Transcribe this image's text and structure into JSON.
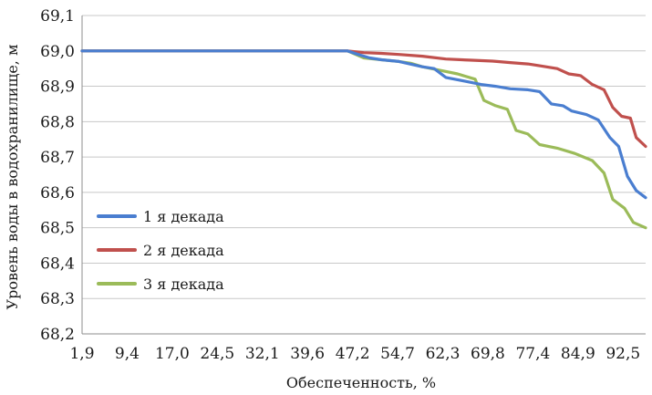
{
  "chart_data": {
    "type": "line",
    "xlabel": "Обеспеченность, %",
    "ylabel": "Уровень воды в водохранилище, м",
    "x_tick_labels": [
      "1,9",
      "9,4",
      "17,0",
      "24,5",
      "32,1",
      "39,6",
      "47,2",
      "54,7",
      "62,3",
      "69,8",
      "77,4",
      "84,9",
      "92,5"
    ],
    "y_tick_labels": [
      "68,2",
      "68,3",
      "68,4",
      "68,5",
      "68,6",
      "68,7",
      "68,8",
      "68,9",
      "69,0",
      "69,1"
    ],
    "ylim": [
      68.2,
      69.1
    ],
    "xlim": [
      1.9,
      98.1
    ],
    "grid": "horizontal",
    "legend_position": "left-center",
    "series": [
      {
        "name": "1 я декада",
        "color": "#4a7ed0",
        "points": [
          [
            1.9,
            69.0
          ],
          [
            45.0,
            69.0
          ],
          [
            47.2,
            69.0
          ],
          [
            49.0,
            68.99
          ],
          [
            51.0,
            68.98
          ],
          [
            53.0,
            68.975
          ],
          [
            56.0,
            68.97
          ],
          [
            60.0,
            68.955
          ],
          [
            62.0,
            68.95
          ],
          [
            64.0,
            68.925
          ],
          [
            67.0,
            68.915
          ],
          [
            70.0,
            68.905
          ],
          [
            72.5,
            68.9
          ],
          [
            75.0,
            68.893
          ],
          [
            78.0,
            68.89
          ],
          [
            80.0,
            68.885
          ],
          [
            82.0,
            68.85
          ],
          [
            84.0,
            68.845
          ],
          [
            85.5,
            68.83
          ],
          [
            88.0,
            68.82
          ],
          [
            90.0,
            68.805
          ],
          [
            92.0,
            68.755
          ],
          [
            93.5,
            68.73
          ],
          [
            95.0,
            68.645
          ],
          [
            96.5,
            68.605
          ],
          [
            98.1,
            68.585
          ]
        ]
      },
      {
        "name": "2 я декада",
        "color": "#c0504d",
        "points": [
          [
            1.9,
            69.0
          ],
          [
            45.0,
            69.0
          ],
          [
            47.2,
            69.0
          ],
          [
            50.0,
            68.995
          ],
          [
            53.0,
            68.993
          ],
          [
            56.0,
            68.99
          ],
          [
            60.0,
            68.985
          ],
          [
            64.0,
            68.977
          ],
          [
            68.0,
            68.974
          ],
          [
            72.0,
            68.971
          ],
          [
            75.0,
            68.967
          ],
          [
            78.0,
            68.963
          ],
          [
            80.0,
            68.958
          ],
          [
            83.0,
            68.95
          ],
          [
            85.0,
            68.935
          ],
          [
            87.0,
            68.93
          ],
          [
            89.0,
            68.905
          ],
          [
            91.0,
            68.89
          ],
          [
            92.5,
            68.84
          ],
          [
            94.0,
            68.815
          ],
          [
            95.5,
            68.81
          ],
          [
            96.5,
            68.755
          ],
          [
            98.1,
            68.73
          ]
        ]
      },
      {
        "name": "3 я декада",
        "color": "#9bbb59",
        "points": [
          [
            1.9,
            69.0
          ],
          [
            45.0,
            69.0
          ],
          [
            47.2,
            69.0
          ],
          [
            50.0,
            68.98
          ],
          [
            53.0,
            68.975
          ],
          [
            56.0,
            68.97
          ],
          [
            58.0,
            68.965
          ],
          [
            60.0,
            68.955
          ],
          [
            63.0,
            68.945
          ],
          [
            66.0,
            68.935
          ],
          [
            69.0,
            68.92
          ],
          [
            70.5,
            68.86
          ],
          [
            72.5,
            68.845
          ],
          [
            74.5,
            68.835
          ],
          [
            76.0,
            68.775
          ],
          [
            78.0,
            68.765
          ],
          [
            80.0,
            68.735
          ],
          [
            83.0,
            68.725
          ],
          [
            86.0,
            68.71
          ],
          [
            89.0,
            68.69
          ],
          [
            91.0,
            68.655
          ],
          [
            92.5,
            68.58
          ],
          [
            94.5,
            68.555
          ],
          [
            96.0,
            68.515
          ],
          [
            98.1,
            68.5
          ]
        ]
      }
    ]
  }
}
